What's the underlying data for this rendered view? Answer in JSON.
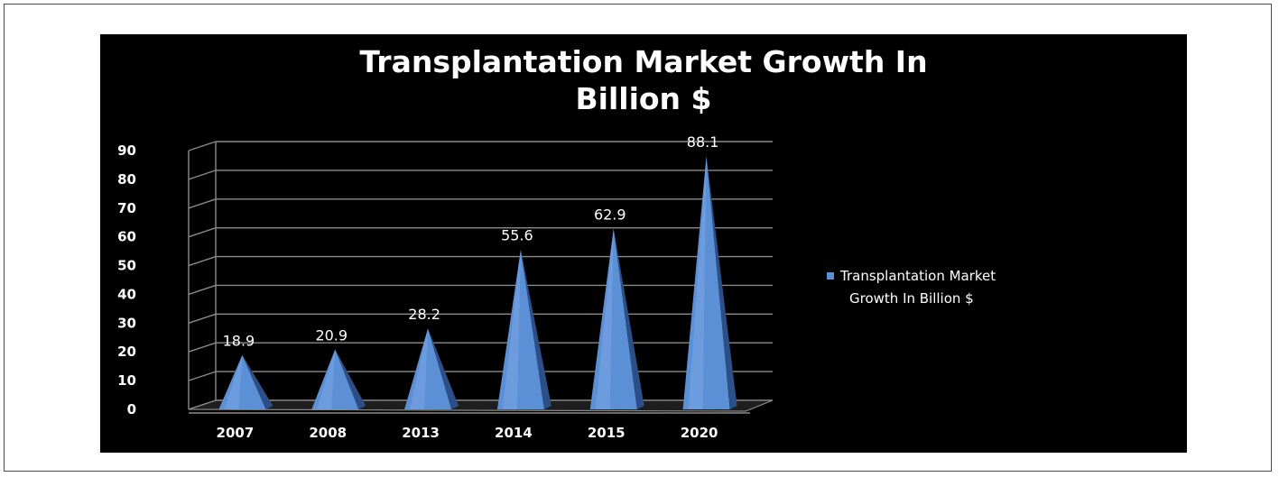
{
  "chart_data": {
    "type": "bar",
    "title_lines": [
      "Transplantation Market Growth In",
      "Billion $"
    ],
    "categories": [
      "2007",
      "2008",
      "2013",
      "2014",
      "2015",
      "2020"
    ],
    "series": [
      {
        "name": "Transplantation Market Growth In Billion $",
        "legend_lines": [
          "Transplantation Market",
          "Growth In Billion $"
        ],
        "values": [
          18.9,
          20.9,
          28.2,
          55.6,
          62.9,
          88.1
        ],
        "data_labels": [
          "18.9",
          "20.9",
          "28.2",
          "55.6",
          "62.9",
          "88.1"
        ],
        "color": "#5b8fd6"
      }
    ],
    "yticks": [
      "0",
      "10",
      "20",
      "30",
      "40",
      "50",
      "60",
      "70",
      "80",
      "90"
    ],
    "ylim": [
      0,
      90
    ],
    "grid": true,
    "legend_position": "right",
    "shape": "pyramid",
    "background": "#000000",
    "text_color": "#ffffff"
  }
}
